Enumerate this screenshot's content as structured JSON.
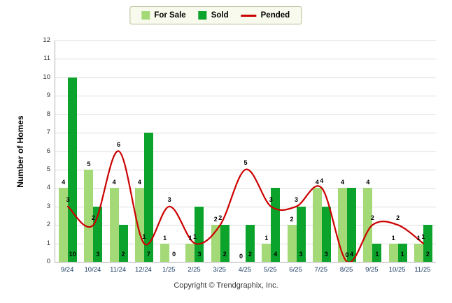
{
  "legend": {
    "for_sale": "For Sale",
    "sold": "Sold",
    "pended": "Pended"
  },
  "footer": "Copyright © Trendgraphix, Inc.",
  "chart_data": {
    "type": "bar",
    "title": "",
    "ylabel": "Number of Homes",
    "xlabel": "",
    "ylim": [
      0,
      12
    ],
    "yticks": [
      0,
      1,
      2,
      3,
      4,
      5,
      6,
      7,
      8,
      9,
      10,
      11,
      12
    ],
    "grid": true,
    "legend_position": "top",
    "categories": [
      "9/24",
      "10/24",
      "11/24",
      "12/24",
      "1/25",
      "2/25",
      "3/25",
      "4/25",
      "5/25",
      "6/25",
      "7/25",
      "8/25",
      "9/25",
      "10/25",
      "11/25"
    ],
    "series": [
      {
        "name": "For Sale",
        "type": "bar",
        "color": "#a3d977",
        "values": [
          4,
          5,
          4,
          4,
          1,
          1,
          2,
          0,
          1,
          2,
          4,
          4,
          4,
          1,
          1
        ]
      },
      {
        "name": "Sold",
        "type": "bar",
        "color": "#0ca32c",
        "values": [
          10,
          3,
          2,
          7,
          0,
          3,
          2,
          2,
          4,
          3,
          3,
          4,
          1,
          1,
          2
        ]
      },
      {
        "name": "Pended",
        "type": "line",
        "color": "#cc0000",
        "values": [
          3,
          2,
          6,
          1,
          3,
          1,
          2,
          5,
          3,
          3,
          4,
          0,
          2,
          2,
          1
        ]
      }
    ]
  }
}
